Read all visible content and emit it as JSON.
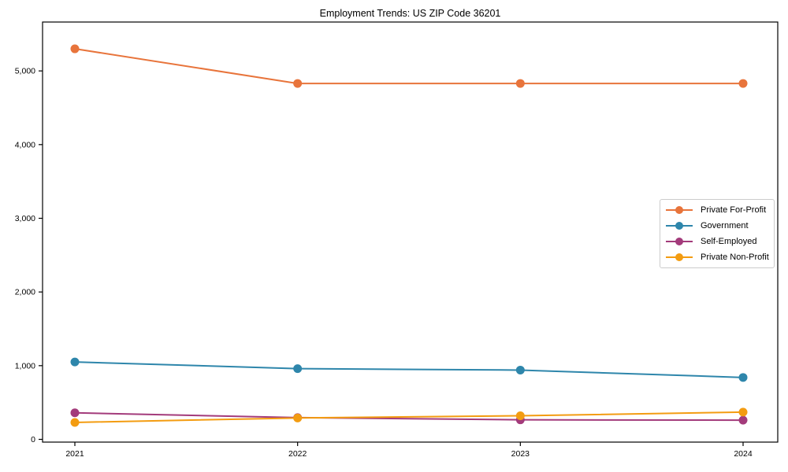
{
  "chart_data": {
    "type": "line",
    "title": "Employment Trends: US ZIP Code 36201",
    "xlabel": "",
    "ylabel": "",
    "categories": [
      "2021",
      "2022",
      "2023",
      "2024"
    ],
    "series": [
      {
        "name": "Private For-Profit",
        "color": "#E8743B",
        "values": [
          5300,
          4830,
          4830,
          4830
        ]
      },
      {
        "name": "Government",
        "color": "#2E86AB",
        "values": [
          1050,
          960,
          940,
          840
        ]
      },
      {
        "name": "Self-Employed",
        "color": "#A33B7B",
        "values": [
          360,
          295,
          265,
          260
        ]
      },
      {
        "name": "Private Non-Profit",
        "color": "#F39C11",
        "values": [
          230,
          290,
          320,
          370
        ]
      }
    ],
    "y_ticks": [
      "0",
      "1,000",
      "2,000",
      "3,000",
      "4,000",
      "5,000"
    ],
    "y_tick_values": [
      0,
      1000,
      2000,
      3000,
      4000,
      5000
    ],
    "ylim": [
      -30,
      5660
    ],
    "grid": false,
    "legend_position": "center right",
    "marker": "circle",
    "axis_color": "#000000"
  }
}
